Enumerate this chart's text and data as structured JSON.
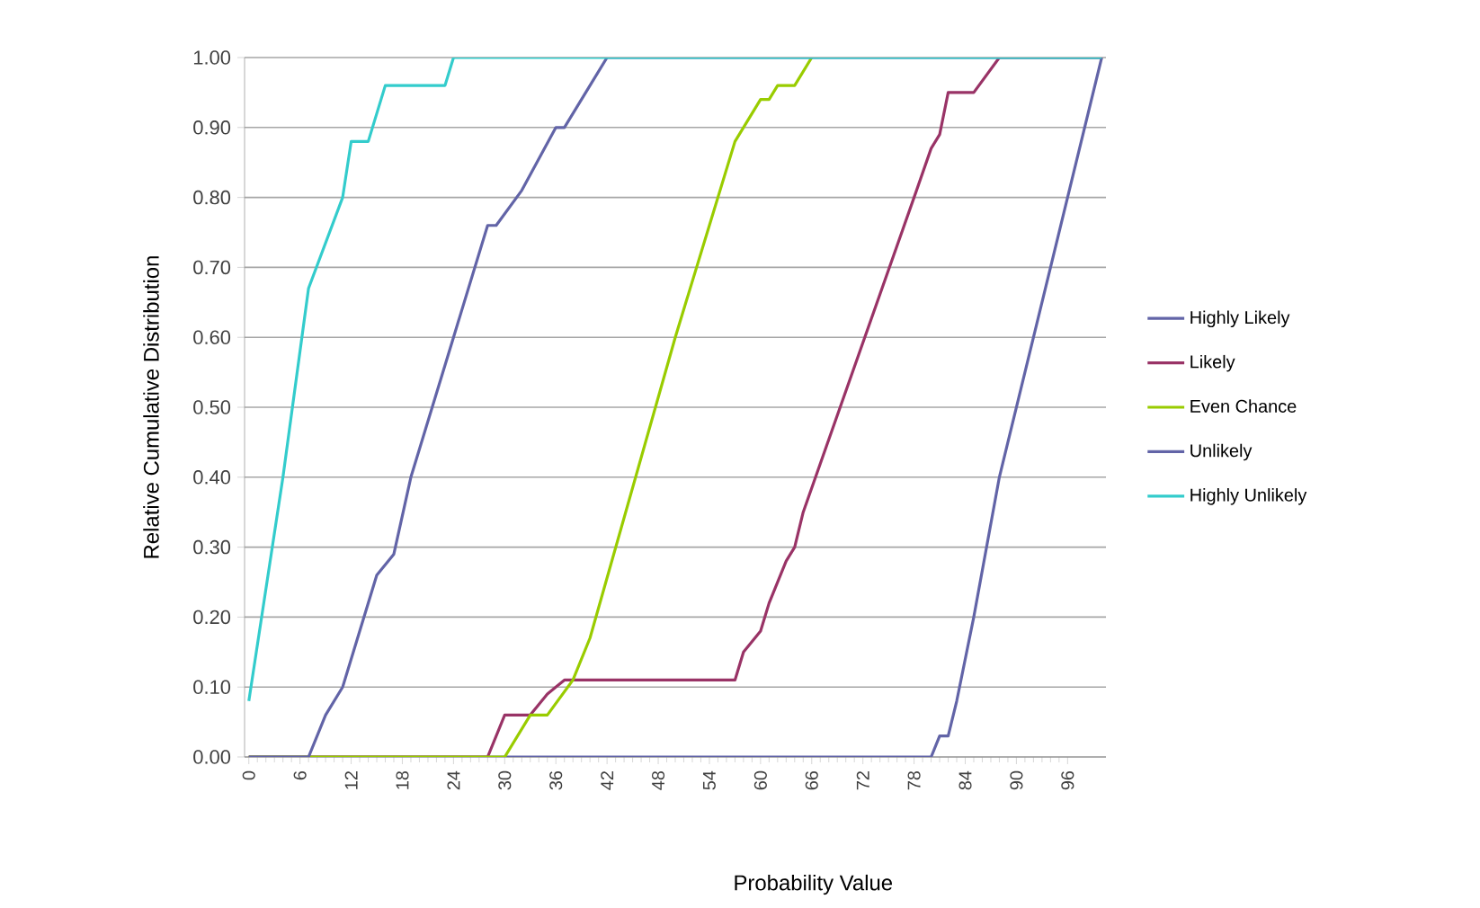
{
  "chart_data": {
    "type": "line",
    "xlabel": "Probability Value",
    "ylabel": "Relative Cumulative Distribution",
    "xlim": [
      -0.5,
      100.5
    ],
    "ylim": [
      0,
      1
    ],
    "xticks": [
      0,
      6,
      12,
      18,
      24,
      30,
      36,
      42,
      48,
      54,
      60,
      66,
      72,
      78,
      84,
      90,
      96
    ],
    "yticks": [
      {
        "value": 0,
        "label": "0.00"
      },
      {
        "value": 0.1,
        "label": "0.10"
      },
      {
        "value": 0.2,
        "label": "0.20"
      },
      {
        "value": 0.3,
        "label": "0.30"
      },
      {
        "value": 0.4,
        "label": "0.40"
      },
      {
        "value": 0.5,
        "label": "0.50"
      },
      {
        "value": 0.6,
        "label": "0.60"
      },
      {
        "value": 0.7,
        "label": "0.70"
      },
      {
        "value": 0.8,
        "label": "0.80"
      },
      {
        "value": 0.9,
        "label": "0.90"
      },
      {
        "value": 1,
        "label": "1.00"
      }
    ],
    "grid": "y",
    "legend": "right",
    "marker": "none",
    "line_style": "solid",
    "series": [
      {
        "name": "Highly Likely",
        "color": "#6264a7",
        "x": [
          0,
          80,
          81,
          82,
          83,
          85,
          88,
          100
        ],
        "values": [
          0,
          0,
          0.03,
          0.03,
          0.08,
          0.2,
          0.4,
          1
        ]
      },
      {
        "name": "Likely",
        "color": "#993366",
        "x": [
          0,
          28,
          30,
          33,
          35,
          37,
          57,
          58,
          60,
          61,
          63,
          64,
          65,
          78,
          80,
          81,
          82,
          85,
          88,
          100
        ],
        "values": [
          0,
          0,
          0.06,
          0.06,
          0.09,
          0.11,
          0.11,
          0.15,
          0.18,
          0.22,
          0.28,
          0.3,
          0.35,
          0.8,
          0.87,
          0.89,
          0.95,
          0.95,
          1,
          1
        ]
      },
      {
        "name": "Even Chance",
        "color": "#99cc00",
        "x": [
          0,
          30,
          33,
          35,
          38,
          40,
          50,
          57,
          60,
          61,
          62,
          64,
          66
        ],
        "values": [
          0,
          0,
          0.06,
          0.06,
          0.11,
          0.17,
          0.6,
          0.88,
          0.94,
          0.94,
          0.96,
          0.96,
          1
        ]
      },
      {
        "name": "Unlikely",
        "color": "#6264a7",
        "x": [
          0,
          7,
          9,
          11,
          15,
          17,
          19,
          24,
          28,
          29,
          32,
          36,
          37,
          40,
          42,
          100
        ],
        "values": [
          0,
          0,
          0.06,
          0.1,
          0.26,
          0.29,
          0.4,
          0.6,
          0.76,
          0.76,
          0.81,
          0.9,
          0.9,
          0.96,
          1,
          1
        ]
      },
      {
        "name": "Highly Unlikely",
        "color": "#33cccc",
        "x": [
          0,
          4,
          7,
          11,
          12,
          14,
          16,
          23,
          24,
          100
        ],
        "values": [
          0.08,
          0.4,
          0.67,
          0.8,
          0.88,
          0.88,
          0.96,
          0.96,
          1,
          1
        ]
      }
    ]
  }
}
